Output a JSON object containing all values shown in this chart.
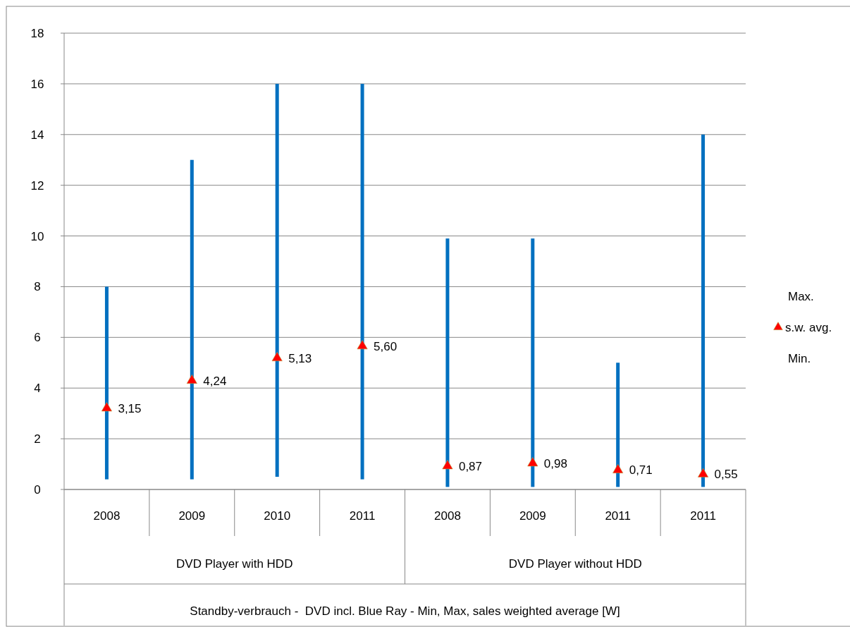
{
  "chart_data": {
    "type": "bar",
    "categories": [
      "2008",
      "2009",
      "2010",
      "2011",
      "2008",
      "2009",
      "2011",
      "2011"
    ],
    "series": [
      {
        "color": "#0070c0",
        "base": [
          0.4,
          0.4,
          0.5,
          0.4,
          0.1,
          0.1,
          0.1,
          0.1
        ],
        "values": [
          7.6,
          12.6,
          15.5,
          15.6,
          9.8,
          9.8,
          4.9,
          13.9
        ]
      },
      {
        "type": "scatter",
        "name": "s.w. avg.",
        "color": "#ff0000",
        "marker": "triangle",
        "values": [
          3.15,
          4.24,
          5.13,
          5.6,
          0.87,
          0.98,
          0.71,
          0.55
        ],
        "value_labels": [
          "3,15",
          "4,24",
          "5,13",
          "5,60",
          "0,87",
          "0,98",
          "0,71",
          "0,55"
        ]
      }
    ],
    "annotations": [
      "Max.",
      "Min.",
      "DVD Player with HDD",
      "DVD Player without HDD",
      "Standby-verbrauch -  DVD incl. Blue Ray - Min, Max, sales weighted average [W]"
    ],
    "ylim": [
      0,
      18
    ],
    "yticks": [
      0,
      2,
      4,
      6,
      8,
      10,
      12,
      14,
      16,
      18
    ],
    "grid": "y",
    "legend": "right"
  }
}
